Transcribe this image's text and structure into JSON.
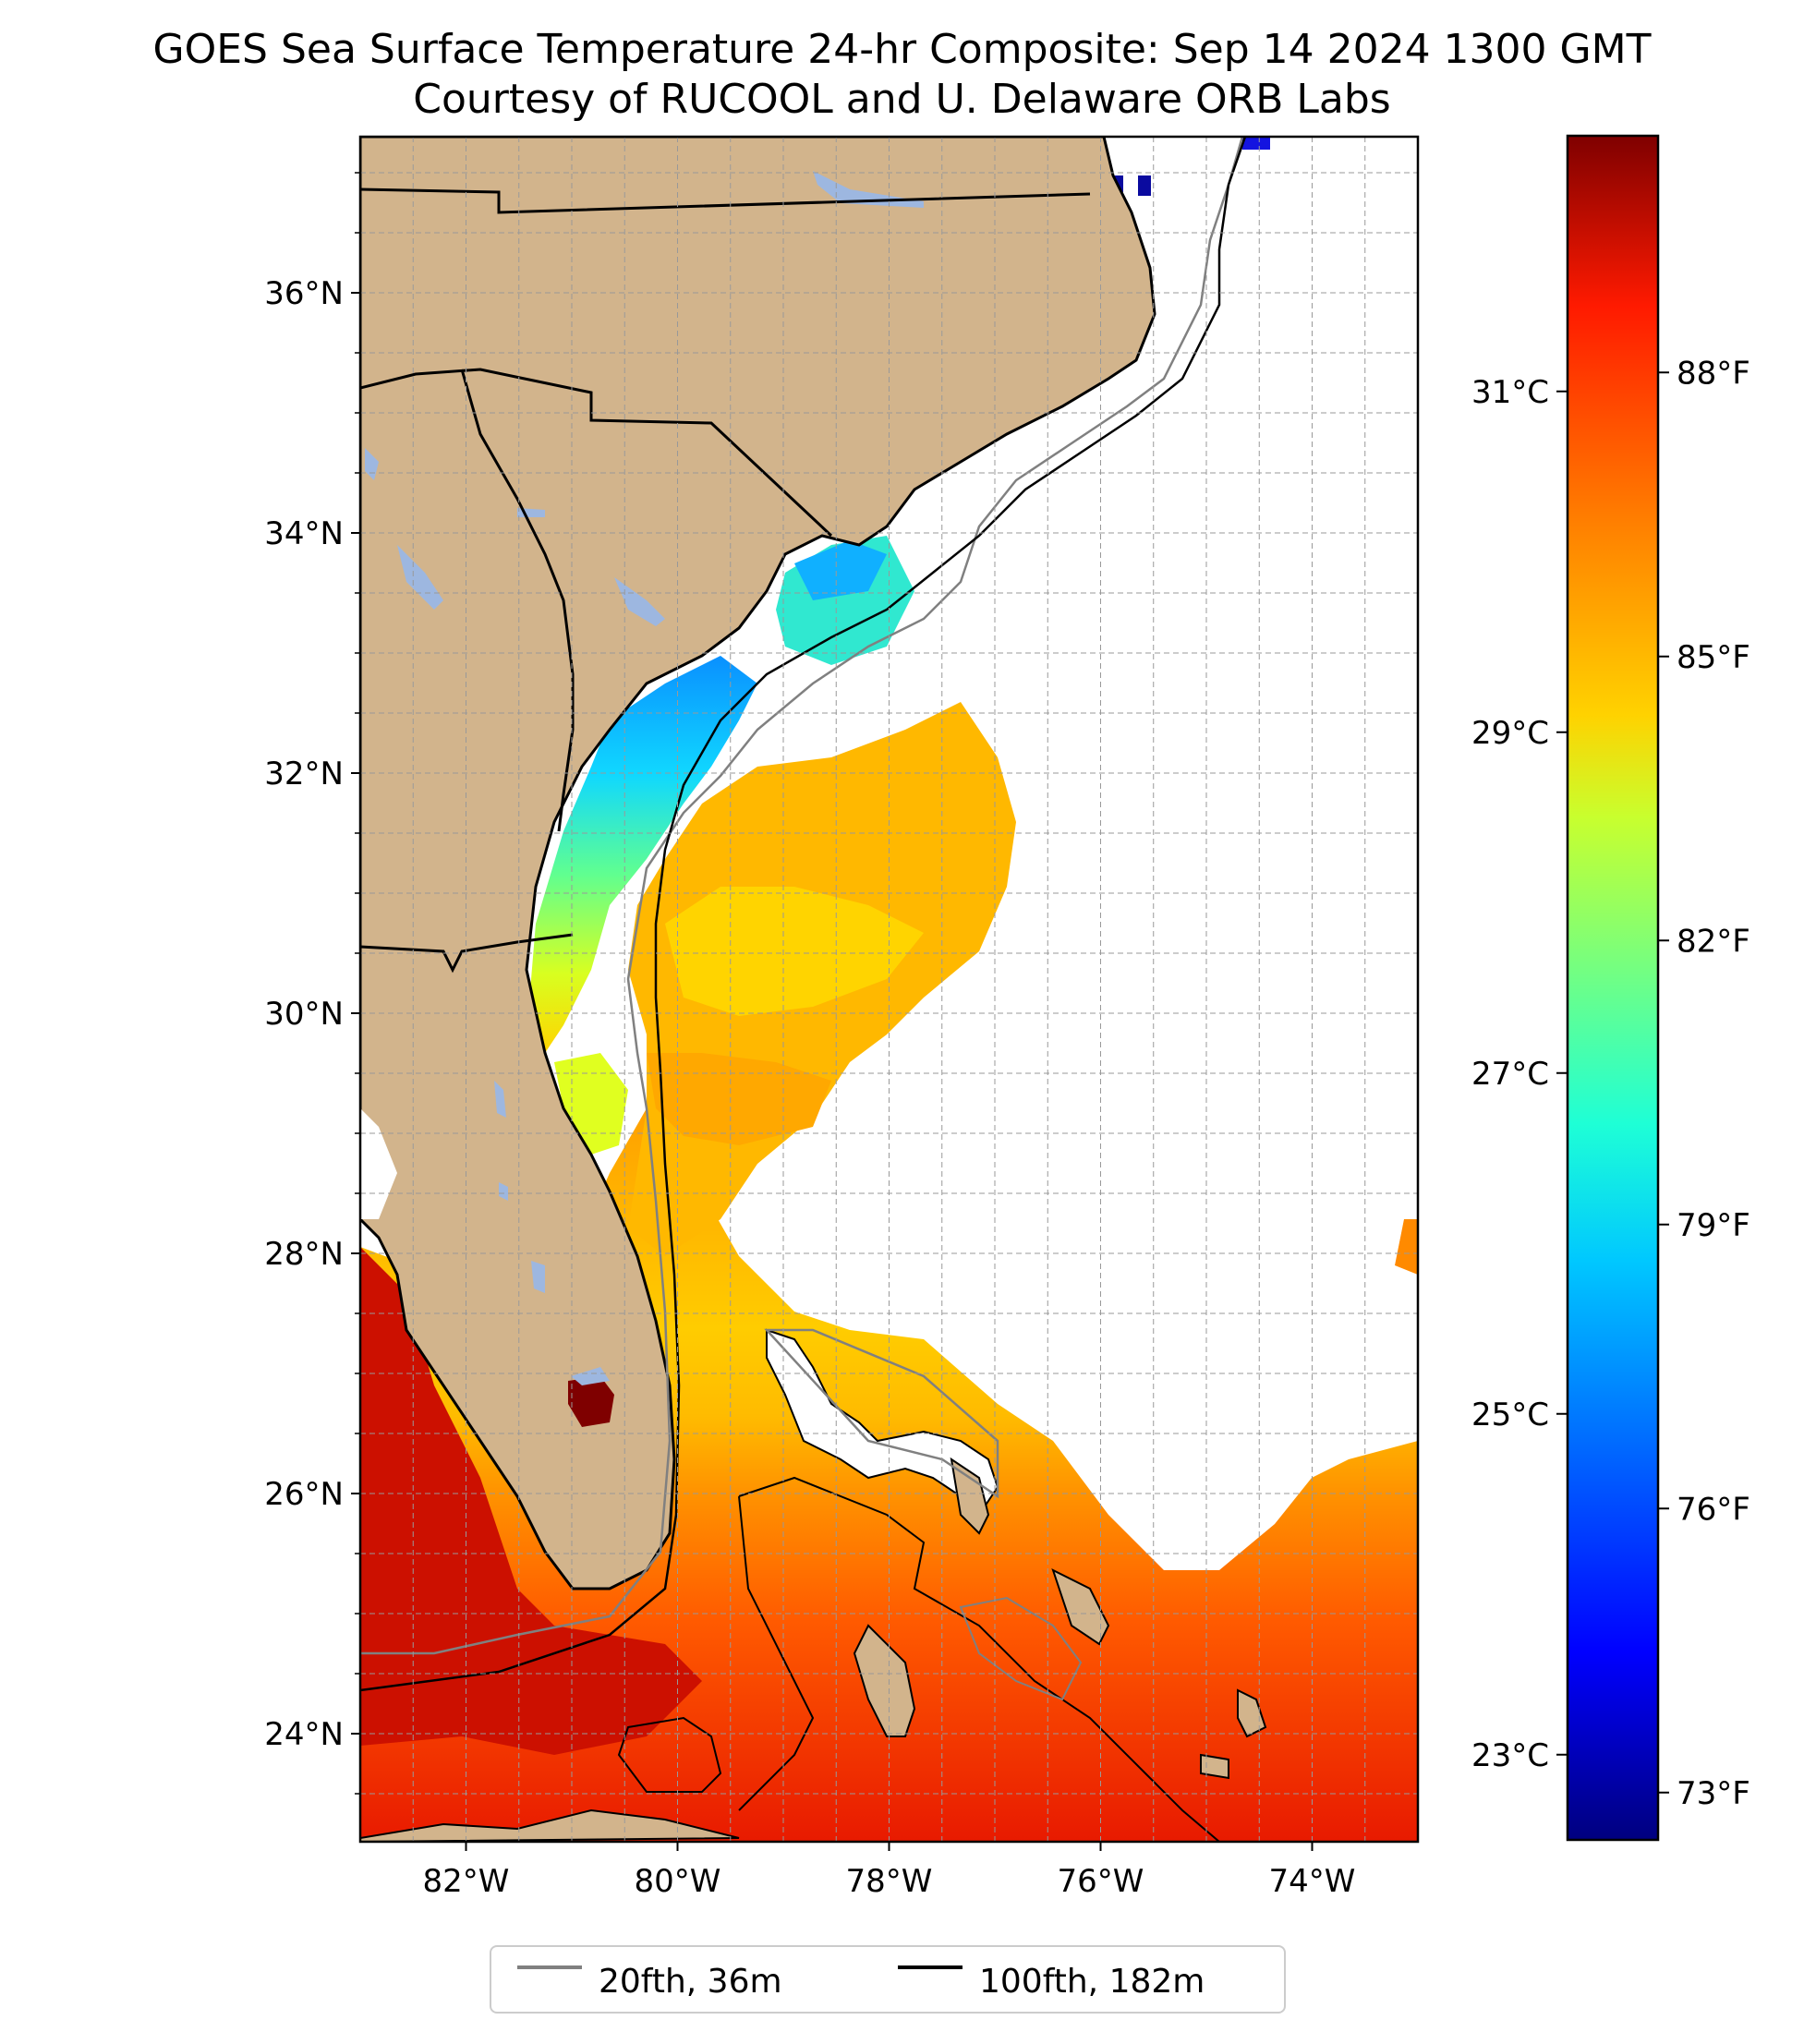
{
  "title": "GOES Sea Surface Temperature 24-hr Composite: Sep 14 2024 1300 GMT",
  "subtitle": "Courtesy of RUCOOL and U. Delaware ORB Labs",
  "map": {
    "lon_range": [
      -83,
      -73
    ],
    "lat_range": [
      23.1,
      37.3
    ],
    "gridlines": true,
    "land_color": "#d2b48c",
    "lake_color": "#9db7e0",
    "lat_labels": [
      "24°N",
      "26°N",
      "28°N",
      "30°N",
      "32°N",
      "34°N",
      "36°N"
    ],
    "lon_labels": [
      "82°W",
      "80°W",
      "78°W",
      "76°W",
      "74°W"
    ]
  },
  "colorbar": {
    "colormap": "jet",
    "celsius_labels": [
      "23°C",
      "25°C",
      "27°C",
      "29°C",
      "31°C"
    ],
    "fahrenheit_labels": [
      "73°F",
      "76°F",
      "79°F",
      "82°F",
      "85°F",
      "88°F"
    ],
    "range_f": [
      72.5,
      90.5
    ]
  },
  "legend": {
    "items": [
      {
        "label": "20fth, 36m",
        "color": "#808080"
      },
      {
        "label": "100fth, 182m",
        "color": "#000000"
      }
    ]
  }
}
